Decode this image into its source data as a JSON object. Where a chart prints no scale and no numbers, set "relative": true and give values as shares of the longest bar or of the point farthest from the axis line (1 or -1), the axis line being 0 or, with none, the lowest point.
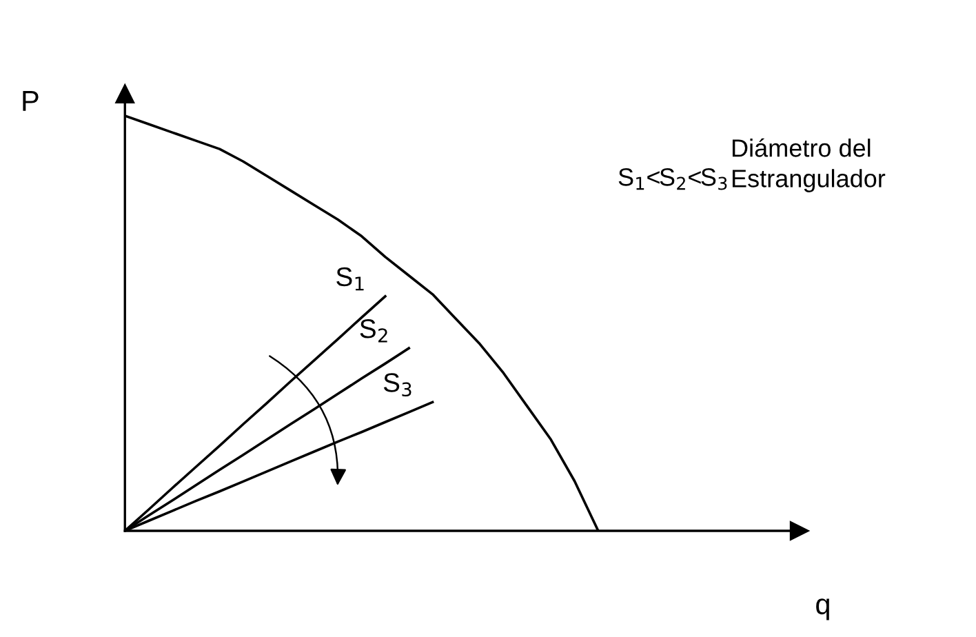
{
  "chart_data": {
    "type": "line",
    "relative": true,
    "xlabel": "q",
    "ylabel": "P",
    "legend": false,
    "marker": "none",
    "line_style": "solid",
    "annotations": [
      "S$_{1}$<S$_{2}$<S$_{3}$",
      "Diámetro del\nEstrangulador"
    ],
    "categories": [
      null,
      null,
      null,
      null,
      null,
      null,
      null,
      null,
      null,
      null,
      null,
      null,
      null,
      null,
      null,
      null,
      null,
      null,
      null,
      null,
      null,
      null,
      null,
      null,
      null,
      null,
      null,
      null,
      null
    ],
    "series": [
      {
        "color": "#000000",
        "values": [
          1,
          0.98,
          0.96,
          0.94,
          0.92,
          0.89,
          0.855,
          0.82,
          0.785,
          0.75,
          0.71,
          0.66,
          0.615,
          0.57,
          0.51,
          0.45,
          0.38,
          0.3,
          0.22,
          0.12,
          0,
          null,
          null,
          null,
          null,
          null,
          null,
          null,
          null
        ]
      },
      {
        "name": "S$_{1}$",
        "color": "#000000",
        "values": [
          0,
          0.051,
          0.103,
          0.154,
          0.205,
          0.257,
          0.308,
          0.36,
          0.411,
          0.462,
          0.514,
          0.565,
          null,
          null,
          null,
          null,
          null,
          null,
          null,
          null,
          null,
          null,
          null,
          null,
          null,
          null,
          null,
          null,
          null
        ]
      },
      {
        "name": "S$_{2}$",
        "color": "#000000",
        "values": [
          0,
          0.037,
          0.073,
          0.11,
          0.147,
          0.183,
          0.22,
          0.257,
          0.293,
          0.33,
          0.367,
          0.403,
          0.44,
          null,
          null,
          null,
          null,
          null,
          null,
          null,
          null,
          null,
          null,
          null,
          null,
          null,
          null,
          null,
          null
        ]
      },
      {
        "name": "S$_{3}$",
        "color": "#000000",
        "values": [
          0,
          0.024,
          0.048,
          0.072,
          0.095,
          0.119,
          0.143,
          0.167,
          0.191,
          0.215,
          0.238,
          0.262,
          0.286,
          0.31,
          null,
          null,
          null,
          null,
          null,
          null,
          null,
          null,
          null,
          null,
          null,
          null,
          null,
          null,
          null
        ]
      }
    ]
  }
}
